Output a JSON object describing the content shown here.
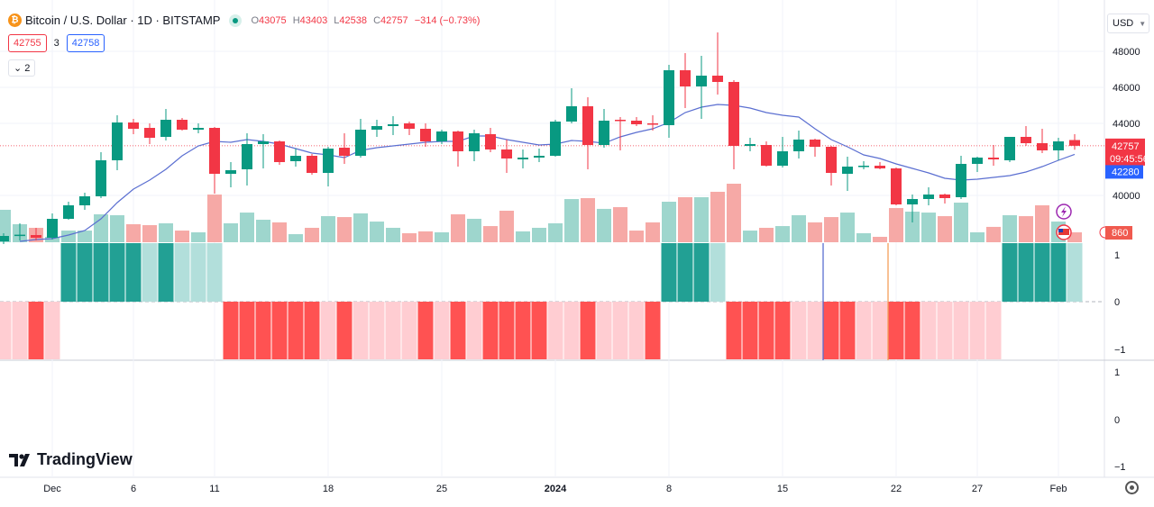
{
  "header": {
    "symbol_title": "Bitcoin / U.S. Dollar · 1D · BITSTAMP",
    "symbol_icon": "bitcoin-icon",
    "ohlc": {
      "o_label": "O",
      "o": "43075",
      "h_label": "H",
      "h": "43403",
      "l_label": "L",
      "l": "42538",
      "c_label": "C",
      "c": "42757",
      "change": "−314 (−0.73%)"
    },
    "bid": "42755",
    "spread": "3",
    "ask": "42758",
    "collapse_label": "2"
  },
  "currency": "USD",
  "brand": "TradingView",
  "colors": {
    "up": "#089981",
    "down": "#f23645",
    "ma": "#5b6fd1",
    "up_vol": "#9ed6cd",
    "down_vol": "#f6a9a6",
    "sig_up_strong": "#22a094",
    "sig_up_weak": "#b2dfdb",
    "sig_down_strong": "#ff5252",
    "sig_down_weak": "#ffcdd2"
  },
  "chart_data": {
    "type": "candlestick",
    "price_ticks": [
      "48000",
      "46000",
      "44000",
      "40000"
    ],
    "price_labels": {
      "last": "42757",
      "countdown": "09:45:56",
      "ma": "42280",
      "volume": "860"
    },
    "x_ticks": [
      {
        "date": "Dec 1",
        "label": "Dec"
      },
      {
        "date": "Dec 6",
        "label": "6"
      },
      {
        "date": "Dec 11",
        "label": "11"
      },
      {
        "date": "Dec 18",
        "label": "18"
      },
      {
        "date": "Dec 25",
        "label": "25"
      },
      {
        "date": "Jan 1",
        "label": "2024"
      },
      {
        "date": "Jan 8",
        "label": "8"
      },
      {
        "date": "Jan 15",
        "label": "15"
      },
      {
        "date": "Jan 22",
        "label": "22"
      },
      {
        "date": "Jan 27",
        "label": "27"
      },
      {
        "date": "Feb 1",
        "label": "Feb"
      }
    ],
    "pane1_ticks": [
      "1",
      "0",
      "−1"
    ],
    "pane2_ticks": [
      "1",
      "0",
      "−1"
    ],
    "markers": [
      {
        "date": "Jan 17",
        "color": "#5b6fd1"
      },
      {
        "date": "Jan 21",
        "color": "#f59e5b"
      }
    ],
    "dates": [
      "Nov 28",
      "Nov 29",
      "Nov 30",
      "Dec 1",
      "Dec 2",
      "Dec 3",
      "Dec 4",
      "Dec 5",
      "Dec 6",
      "Dec 7",
      "Dec 8",
      "Dec 9",
      "Dec 10",
      "Dec 11",
      "Dec 12",
      "Dec 13",
      "Dec 14",
      "Dec 15",
      "Dec 16",
      "Dec 17",
      "Dec 18",
      "Dec 19",
      "Dec 20",
      "Dec 21",
      "Dec 22",
      "Dec 23",
      "Dec 24",
      "Dec 25",
      "Dec 26",
      "Dec 27",
      "Dec 28",
      "Dec 29",
      "Dec 30",
      "Dec 31",
      "Jan 1",
      "Jan 2",
      "Jan 3",
      "Jan 4",
      "Jan 5",
      "Jan 6",
      "Jan 7",
      "Jan 8",
      "Jan 9",
      "Jan 10",
      "Jan 11",
      "Jan 12",
      "Jan 13",
      "Jan 14",
      "Jan 15",
      "Jan 16",
      "Jan 17",
      "Jan 18",
      "Jan 19",
      "Jan 20",
      "Jan 21",
      "Jan 22",
      "Jan 23",
      "Jan 24",
      "Jan 25",
      "Jan 26",
      "Jan 27",
      "Jan 28",
      "Jan 29",
      "Jan 30",
      "Jan 31",
      "Feb 1",
      "Feb 2"
    ],
    "open": [
      37450,
      37800,
      37800,
      37650,
      38700,
      39450,
      39950,
      41950,
      44050,
      43750,
      43250,
      44200,
      43650,
      43750,
      41200,
      41450,
      42850,
      43000,
      41900,
      42200,
      41250,
      42650,
      42200,
      43650,
      43850,
      44000,
      43700,
      43000,
      43550,
      42450,
      43400,
      42550,
      42000,
      42100,
      42200,
      44100,
      44950,
      42800,
      44200,
      44150,
      44000,
      43900,
      46950,
      46050,
      46650,
      46300,
      42750,
      42800,
      41650,
      42450,
      43100,
      42700,
      41200,
      41600,
      41650,
      41500,
      39500,
      39800,
      40050,
      39900,
      41750,
      42100,
      41950,
      43250,
      42900,
      42500,
      43075
    ],
    "high": [
      37900,
      38450,
      38200,
      39000,
      39650,
      40150,
      42400,
      44450,
      44250,
      44000,
      44800,
      44300,
      44000,
      43800,
      41850,
      43450,
      43400,
      43050,
      42600,
      42300,
      42700,
      43450,
      44250,
      44200,
      44400,
      44100,
      44000,
      43650,
      43600,
      43650,
      43750,
      43100,
      42550,
      42600,
      44200,
      45950,
      45450,
      44800,
      44350,
      44350,
      44450,
      47250,
      47900,
      47750,
      49050,
      46400,
      43200,
      43000,
      43250,
      43600,
      43150,
      42750,
      42150,
      41900,
      41850,
      41550,
      40050,
      40450,
      40100,
      42200,
      42150,
      42800,
      43250,
      43850,
      43700,
      43200,
      43403
    ],
    "low": [
      37300,
      37500,
      37500,
      37550,
      38650,
      39200,
      39850,
      41400,
      43400,
      42850,
      43050,
      43600,
      43450,
      40100,
      40450,
      40550,
      41500,
      41700,
      41600,
      41150,
      40500,
      41750,
      42100,
      43250,
      43350,
      43350,
      42700,
      42850,
      41600,
      41900,
      42400,
      41250,
      41500,
      41850,
      42150,
      44000,
      41450,
      42650,
      42500,
      43850,
      43600,
      43200,
      44850,
      44250,
      45600,
      41450,
      42450,
      41600,
      41550,
      42050,
      42150,
      40550,
      40250,
      41450,
      41450,
      39450,
      38500,
      39450,
      39550,
      39800,
      41300,
      41650,
      41850,
      42750,
      42350,
      41950,
      42538
    ],
    "close": [
      37750,
      37820,
      37650,
      38700,
      39450,
      39950,
      41950,
      44050,
      43700,
      43200,
      44200,
      43650,
      43750,
      41200,
      41400,
      42850,
      43000,
      41850,
      42200,
      41250,
      42600,
      42200,
      43650,
      43850,
      43950,
      43700,
      43000,
      43550,
      42450,
      43450,
      42550,
      42050,
      42100,
      42200,
      44100,
      44950,
      42800,
      44150,
      44150,
      43950,
      43950,
      46950,
      46050,
      46650,
      46300,
      42750,
      42850,
      41650,
      42450,
      43100,
      42700,
      41250,
      41600,
      41650,
      41500,
      39500,
      39800,
      40050,
      39850,
      41750,
      42100,
      42000,
      43250,
      42900,
      42500,
      43000,
      42757
    ],
    "volume": [
      2810,
      1560,
      1250,
      470,
      1010,
      1010,
      2420,
      2340,
      1560,
      1480,
      1640,
      1010,
      860,
      4130,
      1640,
      2570,
      1950,
      1720,
      700,
      1250,
      2260,
      2180,
      2500,
      1790,
      1250,
      780,
      940,
      860,
      2420,
      2030,
      1400,
      2730,
      940,
      1250,
      1640,
      3740,
      3820,
      2890,
      3040,
      1010,
      1720,
      3510,
      3900,
      3900,
      4370,
      5070,
      1010,
      1250,
      1400,
      2340,
      1720,
      2180,
      2570,
      780,
      470,
      2960,
      2650,
      2570,
      2260,
      3430,
      860,
      1330,
      2340,
      2260,
      3200,
      1790,
      860
    ],
    "ma": [
      null,
      37450,
      37550,
      37600,
      37800,
      38050,
      38700,
      39600,
      40350,
      40850,
      41450,
      42200,
      42750,
      43000,
      42950,
      43100,
      43000,
      42850,
      42600,
      42350,
      42250,
      42100,
      42500,
      42650,
      42750,
      42850,
      42950,
      43000,
      43000,
      43300,
      43300,
      43100,
      42950,
      42800,
      42850,
      43050,
      43000,
      42900,
      43250,
      43500,
      43700,
      44050,
      44600,
      44900,
      45050,
      45000,
      44850,
      44600,
      44450,
      44350,
      43700,
      43100,
      42700,
      42250,
      42050,
      41750,
      41500,
      41250,
      40950,
      40850,
      40900,
      41000,
      41100,
      41300,
      41600,
      41950,
      42280
    ],
    "signal": [
      -1,
      -1,
      -1,
      -1,
      1,
      1,
      1,
      1,
      1,
      1,
      1,
      1,
      1,
      1,
      -1,
      -1,
      -1,
      -1,
      -1,
      -1,
      -1,
      -1,
      -1,
      -1,
      -1,
      -1,
      -1,
      -1,
      -1,
      -1,
      -1,
      -1,
      -1,
      -1,
      -1,
      -1,
      -1,
      -1,
      -1,
      -1,
      -1,
      1,
      1,
      1,
      1,
      -1,
      -1,
      -1,
      -1,
      -1,
      -1,
      -1,
      -1,
      -1,
      -1,
      -1,
      -1,
      -1,
      -1,
      -1,
      -1,
      -1,
      1,
      1,
      1,
      1,
      1
    ],
    "signal_strong": [
      false,
      false,
      true,
      false,
      true,
      true,
      true,
      true,
      true,
      false,
      true,
      false,
      false,
      false,
      true,
      true,
      true,
      true,
      true,
      true,
      false,
      true,
      false,
      false,
      false,
      false,
      true,
      false,
      true,
      false,
      true,
      true,
      true,
      true,
      false,
      false,
      true,
      false,
      false,
      false,
      true,
      true,
      true,
      true,
      false,
      true,
      true,
      true,
      true,
      false,
      false,
      true,
      true,
      false,
      false,
      true,
      true,
      false,
      false,
      false,
      false,
      false,
      true,
      true,
      true,
      true,
      false
    ],
    "icons": [
      "lightning-icon",
      "us-flag-icon"
    ]
  }
}
